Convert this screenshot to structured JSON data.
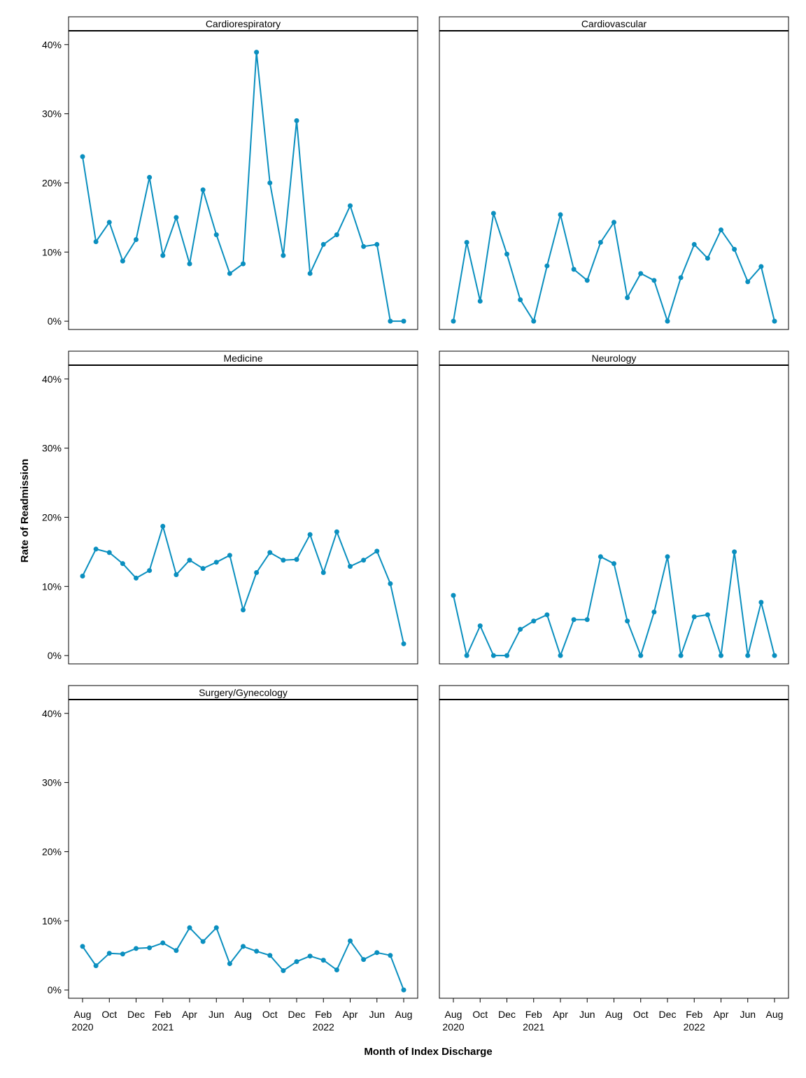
{
  "chart_data": {
    "type": "line",
    "layout": "faceted-grid",
    "xlabel": "Month of Index Discharge",
    "ylabel": "Rate of Readmission",
    "series_color": "#0a8fbf",
    "x_ticks": [
      {
        "label": "Aug",
        "year": "2020"
      },
      {
        "label": "Oct",
        "year": ""
      },
      {
        "label": "Dec",
        "year": ""
      },
      {
        "label": "Feb",
        "year": "2021"
      },
      {
        "label": "Apr",
        "year": ""
      },
      {
        "label": "Jun",
        "year": ""
      },
      {
        "label": "Aug",
        "year": ""
      },
      {
        "label": "Oct",
        "year": ""
      },
      {
        "label": "Dec",
        "year": ""
      },
      {
        "label": "Feb",
        "year": "2022"
      },
      {
        "label": "Apr",
        "year": ""
      },
      {
        "label": "Jun",
        "year": ""
      },
      {
        "label": "Aug",
        "year": ""
      }
    ],
    "x_months": [
      "2020-08",
      "2020-09",
      "2020-10",
      "2020-11",
      "2020-12",
      "2021-01",
      "2021-02",
      "2021-03",
      "2021-04",
      "2021-05",
      "2021-06",
      "2021-07",
      "2021-08",
      "2021-09",
      "2021-10",
      "2021-11",
      "2021-12",
      "2022-01",
      "2022-02",
      "2022-03",
      "2022-04",
      "2022-05",
      "2022-06",
      "2022-07",
      "2022-08"
    ],
    "y_ticks": [
      "0%",
      "10%",
      "20%",
      "30%",
      "40%"
    ],
    "y_tick_values": [
      0,
      10,
      20,
      30,
      40
    ],
    "ylim": [
      -1.2,
      42
    ],
    "panels": [
      {
        "title": "Cardiorespiratory",
        "values": [
          23.8,
          11.5,
          14.3,
          8.7,
          11.8,
          20.8,
          9.5,
          15.0,
          8.3,
          19.0,
          12.5,
          6.9,
          8.3,
          38.9,
          20.0,
          9.5,
          29.0,
          6.9,
          11.1,
          12.5,
          16.7,
          10.8,
          11.1,
          0.0,
          0.0
        ]
      },
      {
        "title": "Cardiovascular",
        "values": [
          0.0,
          11.4,
          2.9,
          15.6,
          9.7,
          3.1,
          0.0,
          8.0,
          15.4,
          7.5,
          5.9,
          11.4,
          14.3,
          3.4,
          6.9,
          5.9,
          0.0,
          6.3,
          11.1,
          9.1,
          13.2,
          10.4,
          5.7,
          7.9,
          0.0
        ]
      },
      {
        "title": "Medicine",
        "values": [
          11.5,
          15.4,
          14.9,
          13.3,
          11.2,
          12.3,
          18.7,
          11.7,
          13.8,
          12.6,
          13.5,
          14.5,
          6.6,
          12.0,
          14.9,
          13.8,
          13.9,
          17.5,
          12.0,
          17.9,
          12.9,
          13.8,
          15.1,
          10.4,
          1.7
        ]
      },
      {
        "title": "Neurology",
        "values": [
          8.7,
          0.0,
          4.3,
          0.0,
          0.0,
          3.8,
          5.0,
          5.9,
          0.0,
          5.2,
          5.2,
          14.3,
          13.3,
          5.0,
          0.0,
          6.3,
          14.3,
          0.0,
          5.6,
          5.9,
          0.0,
          15.0,
          0.0,
          7.7,
          0.0
        ]
      },
      {
        "title": "Surgery/Gynecology",
        "values": [
          6.3,
          3.5,
          5.3,
          5.2,
          6.0,
          6.1,
          6.8,
          5.7,
          9.0,
          7.0,
          9.0,
          3.8,
          6.3,
          5.6,
          5.0,
          2.8,
          4.1,
          4.9,
          4.3,
          2.9,
          7.1,
          4.4,
          5.4,
          5.0,
          0.0
        ]
      },
      {
        "title": "",
        "values": []
      }
    ]
  }
}
